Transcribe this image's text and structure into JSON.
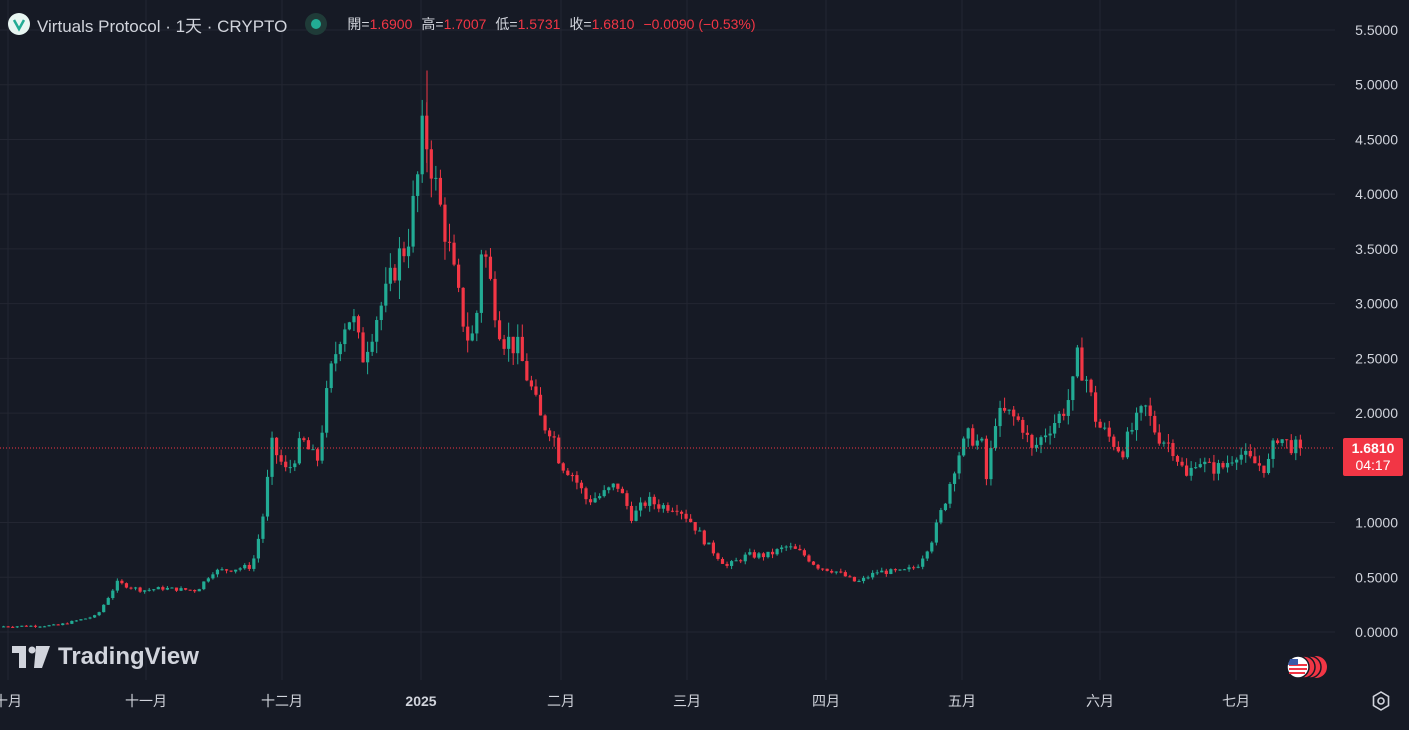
{
  "legend": {
    "symbol": "Virtuals Protocol · 1天 · CRYPTO",
    "open_label": "開=",
    "open": "1.6900",
    "high_label": "高=",
    "high": "1.7007",
    "low_label": "低=",
    "low": "1.5731",
    "close_label": "收=",
    "close": "1.6810",
    "change": "−0.0090 (−0.53%)"
  },
  "price_tag": {
    "price": "1.6810",
    "countdown": "04:17"
  },
  "branding": {
    "name": "TradingView"
  },
  "colors": {
    "background": "#161a25",
    "up": "#22ab94",
    "down": "#f23645",
    "grid": "#232632",
    "text": "#d1d4dc"
  },
  "icons": {
    "status": "live-status-dot-icon",
    "country": "us-flag-icon",
    "settings": "settings-gear-icon",
    "symbol_logo": "virtuals-logo-icon"
  },
  "chart_data": {
    "type": "candlestick",
    "title": "Virtuals Protocol · 1天 · CRYPTO",
    "y_axis": {
      "ticks": [
        "5.5000",
        "5.0000",
        "4.5000",
        "4.0000",
        "3.5000",
        "3.0000",
        "2.5000",
        "2.0000",
        "1.0000",
        "0.5000",
        "0.0000"
      ],
      "range": [
        -0.25,
        5.55
      ],
      "position": "right"
    },
    "x_axis": {
      "ticks": [
        "十月",
        "十一月",
        "十二月",
        "2025",
        "二月",
        "三月",
        "四月",
        "五月",
        "六月",
        "七月"
      ]
    },
    "last_price": 1.681,
    "grid": true,
    "series_shape": {
      "description_points": [
        [
          "十月",
          0.05
        ],
        [
          "十一月",
          0.4
        ],
        [
          "十二月",
          1.6
        ],
        [
          "2025",
          4.5
        ],
        [
          "2025-peak",
          5.1
        ],
        [
          "二月",
          1.55
        ],
        [
          "三月",
          0.95
        ],
        [
          "四月",
          0.5
        ],
        [
          "五月",
          1.6
        ],
        [
          "六月",
          2.0
        ],
        [
          "七月",
          1.65
        ]
      ]
    },
    "anchors": [
      [
        0,
        0.05
      ],
      [
        60,
        0.06
      ],
      [
        100,
        0.15
      ],
      [
        120,
        0.45
      ],
      [
        145,
        0.38
      ],
      [
        165,
        0.4
      ],
      [
        200,
        0.38
      ],
      [
        215,
        0.55
      ],
      [
        255,
        0.6
      ],
      [
        265,
        1.0
      ],
      [
        275,
        1.7
      ],
      [
        290,
        1.45
      ],
      [
        305,
        1.75
      ],
      [
        320,
        1.55
      ],
      [
        332,
        2.3
      ],
      [
        345,
        2.8
      ],
      [
        355,
        2.9
      ],
      [
        365,
        2.5
      ],
      [
        380,
        2.9
      ],
      [
        390,
        3.1
      ],
      [
        400,
        3.4
      ],
      [
        410,
        3.55
      ],
      [
        420,
        4.1
      ],
      [
        426,
        4.6
      ],
      [
        432,
        4.4
      ],
      [
        440,
        4.0
      ],
      [
        450,
        3.6
      ],
      [
        460,
        3.1
      ],
      [
        470,
        2.7
      ],
      [
        478,
        2.7
      ],
      [
        485,
        3.6
      ],
      [
        495,
        3.1
      ],
      [
        505,
        2.7
      ],
      [
        520,
        2.6
      ],
      [
        535,
        2.2
      ],
      [
        545,
        1.9
      ],
      [
        555,
        1.85
      ],
      [
        563,
        1.55
      ],
      [
        575,
        1.45
      ],
      [
        590,
        1.2
      ],
      [
        605,
        1.25
      ],
      [
        620,
        1.35
      ],
      [
        635,
        1.05
      ],
      [
        650,
        1.2
      ],
      [
        665,
        1.15
      ],
      [
        680,
        1.15
      ],
      [
        695,
        1.0
      ],
      [
        710,
        0.8
      ],
      [
        730,
        0.6
      ],
      [
        750,
        0.7
      ],
      [
        770,
        0.7
      ],
      [
        790,
        0.78
      ],
      [
        805,
        0.72
      ],
      [
        820,
        0.6
      ],
      [
        840,
        0.55
      ],
      [
        860,
        0.45
      ],
      [
        880,
        0.55
      ],
      [
        905,
        0.55
      ],
      [
        920,
        0.6
      ],
      [
        935,
        0.85
      ],
      [
        948,
        1.2
      ],
      [
        960,
        1.6
      ],
      [
        972,
        1.8
      ],
      [
        985,
        1.7
      ],
      [
        990,
        1.35
      ],
      [
        998,
        1.95
      ],
      [
        1010,
        2.0
      ],
      [
        1025,
        1.9
      ],
      [
        1035,
        1.65
      ],
      [
        1050,
        1.85
      ],
      [
        1065,
        2.0
      ],
      [
        1075,
        2.2
      ],
      [
        1080,
        2.5
      ],
      [
        1090,
        2.3
      ],
      [
        1100,
        1.9
      ],
      [
        1115,
        1.75
      ],
      [
        1125,
        1.65
      ],
      [
        1135,
        1.85
      ],
      [
        1148,
        2.05
      ],
      [
        1160,
        1.8
      ],
      [
        1175,
        1.7
      ],
      [
        1190,
        1.4
      ],
      [
        1200,
        1.6
      ],
      [
        1210,
        1.5
      ],
      [
        1225,
        1.5
      ],
      [
        1240,
        1.65
      ],
      [
        1255,
        1.55
      ],
      [
        1270,
        1.5
      ],
      [
        1280,
        1.8
      ],
      [
        1290,
        1.72
      ],
      [
        1300,
        1.68
      ]
    ]
  }
}
